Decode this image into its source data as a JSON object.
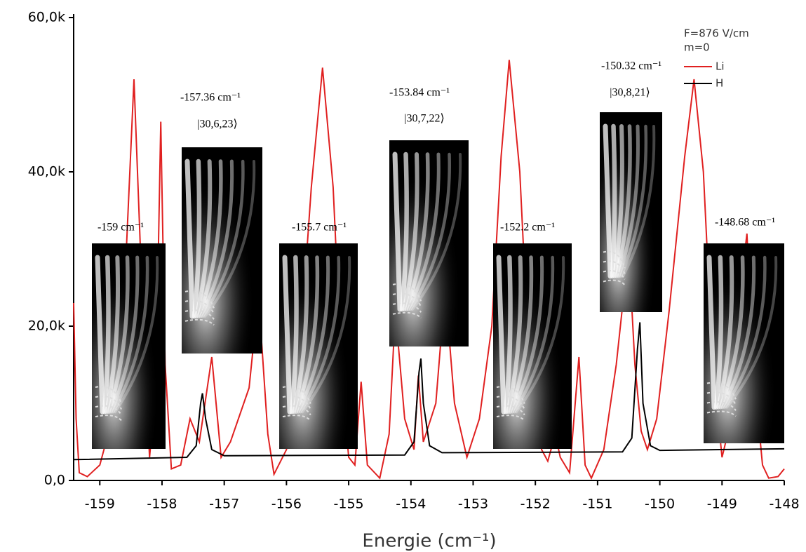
{
  "chart_data": {
    "type": "line",
    "x_label": "Energie (cm⁻¹)",
    "xlim": [
      -159.42,
      -148
    ],
    "xticks": [
      -159,
      -158,
      -157,
      -156,
      -155,
      -154,
      -153,
      -152,
      -151,
      -150,
      -149,
      -148
    ],
    "ylim": [
      0,
      60000
    ],
    "yticks": [
      {
        "value": 0,
        "label": "0,0"
      },
      {
        "value": 20000,
        "label": "20,0k"
      },
      {
        "value": 40000,
        "label": "40,0k"
      },
      {
        "value": 60000,
        "label": "60,0k"
      }
    ],
    "legend": "top right",
    "legend_notes": [
      "F=876 V/cm",
      "m=0"
    ],
    "series": [
      {
        "name": "Li",
        "color": "#e02020",
        "x": [
          -159.42,
          -159.38,
          -159.33,
          -159.2,
          -159.0,
          -158.8,
          -158.6,
          -158.45,
          -158.3,
          -158.2,
          -158.1,
          -158.02,
          -157.95,
          -157.85,
          -157.7,
          -157.55,
          -157.4,
          -157.2,
          -157.05,
          -156.9,
          -156.6,
          -156.45,
          -156.3,
          -156.2,
          -156.0,
          -155.8,
          -155.6,
          -155.42,
          -155.25,
          -155.1,
          -155.0,
          -154.9,
          -154.8,
          -154.7,
          -154.5,
          -154.35,
          -154.25,
          -154.1,
          -153.95,
          -153.88,
          -153.8,
          -153.6,
          -153.45,
          -153.3,
          -153.1,
          -152.9,
          -152.7,
          -152.55,
          -152.42,
          -152.25,
          -152.1,
          -151.9,
          -151.8,
          -151.68,
          -151.6,
          -151.45,
          -151.3,
          -151.2,
          -151.1,
          -150.9,
          -150.7,
          -150.5,
          -150.4,
          -150.3,
          -150.2,
          -150.05,
          -149.85,
          -149.6,
          -149.45,
          -149.3,
          -149.15,
          -149.0,
          -148.85,
          -148.7,
          -148.6,
          -148.5,
          -148.35,
          -148.25,
          -148.1,
          -148.0
        ],
        "values": [
          23000,
          8000,
          1000,
          500,
          2000,
          8000,
          25000,
          52000,
          20000,
          3000,
          12000,
          46500,
          15000,
          1500,
          2000,
          8000,
          5000,
          16000,
          3000,
          5000,
          12000,
          24000,
          6000,
          800,
          4000,
          15000,
          38000,
          53500,
          38000,
          12000,
          3000,
          2000,
          12800,
          2000,
          300,
          6000,
          22000,
          8000,
          4000,
          13600,
          5000,
          10000,
          25000,
          10000,
          3000,
          8000,
          20000,
          42000,
          54500,
          40000,
          15000,
          4000,
          2500,
          6000,
          3000,
          1000,
          16000,
          2000,
          300,
          4000,
          15000,
          30000,
          15000,
          6400,
          4000,
          8000,
          22000,
          42000,
          52000,
          40000,
          15000,
          3000,
          8000,
          25000,
          32000,
          15000,
          2000,
          300,
          500,
          1500
        ]
      },
      {
        "name": "H",
        "color": "#000000",
        "x": [
          -159.42,
          -157.6,
          -157.45,
          -157.38,
          -157.35,
          -157.3,
          -157.2,
          -157.0,
          -154.1,
          -153.95,
          -153.87,
          -153.84,
          -153.8,
          -153.7,
          -153.5,
          -150.6,
          -150.45,
          -150.36,
          -150.32,
          -150.27,
          -150.15,
          -150.0,
          -148.0
        ],
        "values": [
          2700,
          3000,
          4500,
          10000,
          11300,
          8000,
          4000,
          3200,
          3300,
          5000,
          14000,
          15800,
          10000,
          4500,
          3600,
          3700,
          5500,
          17000,
          20500,
          10000,
          4500,
          3900,
          4100
        ]
      }
    ],
    "annotations": [
      "-159 cm⁻¹",
      "-157.36 cm⁻¹",
      "|30,6,23⟩",
      "-155.7 cm⁻¹",
      "-153.84 cm⁻¹",
      "|30,7,22⟩",
      "-152.2 cm⁻¹",
      "-150.32 cm⁻¹",
      "|30,8,21⟩",
      "-148.68 cm⁻¹"
    ]
  }
}
